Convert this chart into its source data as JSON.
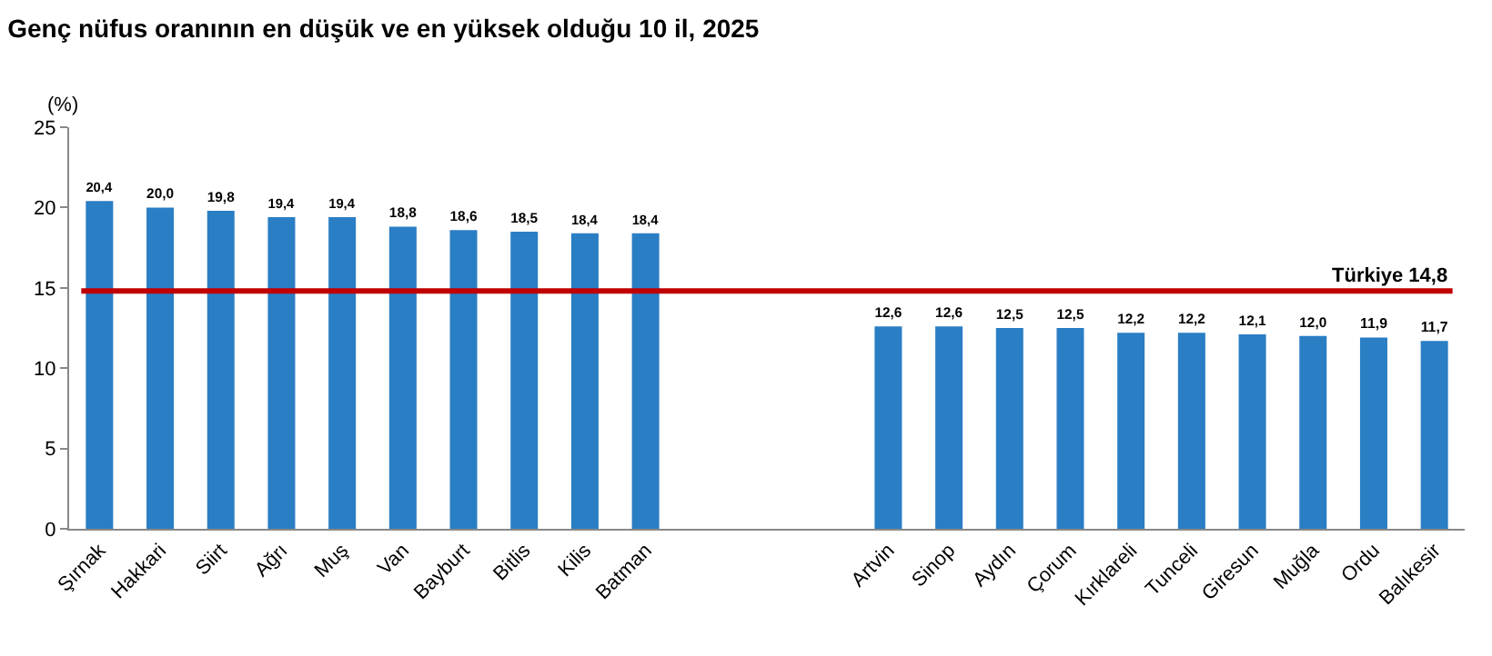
{
  "chart_data": {
    "type": "bar",
    "title": "Genç nüfus oranının en düşük ve en yüksek olduğu 10 il, 2025",
    "ylabel": "(%)",
    "categories": [
      "Şırnak",
      "Hakkari",
      "Siirt",
      "Ağrı",
      "Muş",
      "Van",
      "Bayburt",
      "Bitlis",
      "Kilis",
      "Batman",
      null,
      null,
      null,
      "Artvin",
      "Sinop",
      "Aydın",
      "Çorum",
      "Kırklareli",
      "Tunceli",
      "Giresun",
      "Muğla",
      "Ordu",
      "Balıkesir"
    ],
    "values": [
      20.4,
      20.0,
      19.8,
      19.4,
      19.4,
      18.8,
      18.6,
      18.5,
      18.4,
      18.4,
      null,
      null,
      null,
      12.6,
      12.6,
      12.5,
      12.5,
      12.2,
      12.2,
      12.1,
      12.0,
      11.9,
      11.7
    ],
    "value_labels": [
      "20,4",
      "20,0",
      "19,8",
      "19,4",
      "19,4",
      "18,8",
      "18,6",
      "18,5",
      "18,4",
      "18,4",
      null,
      null,
      null,
      "12,6",
      "12,6",
      "12,5",
      "12,5",
      "12,2",
      "12,2",
      "12,1",
      "12,0",
      "11,9",
      "11,7"
    ],
    "color": "#2a7ec4",
    "ylim": [
      0,
      25
    ],
    "yticks": [
      0,
      5,
      10,
      15,
      20,
      25
    ],
    "grid": false,
    "ref_lines": [
      {
        "axis": "y",
        "value": 14.8,
        "label": "Türkiye 14,8",
        "color": "#c00000"
      }
    ]
  }
}
